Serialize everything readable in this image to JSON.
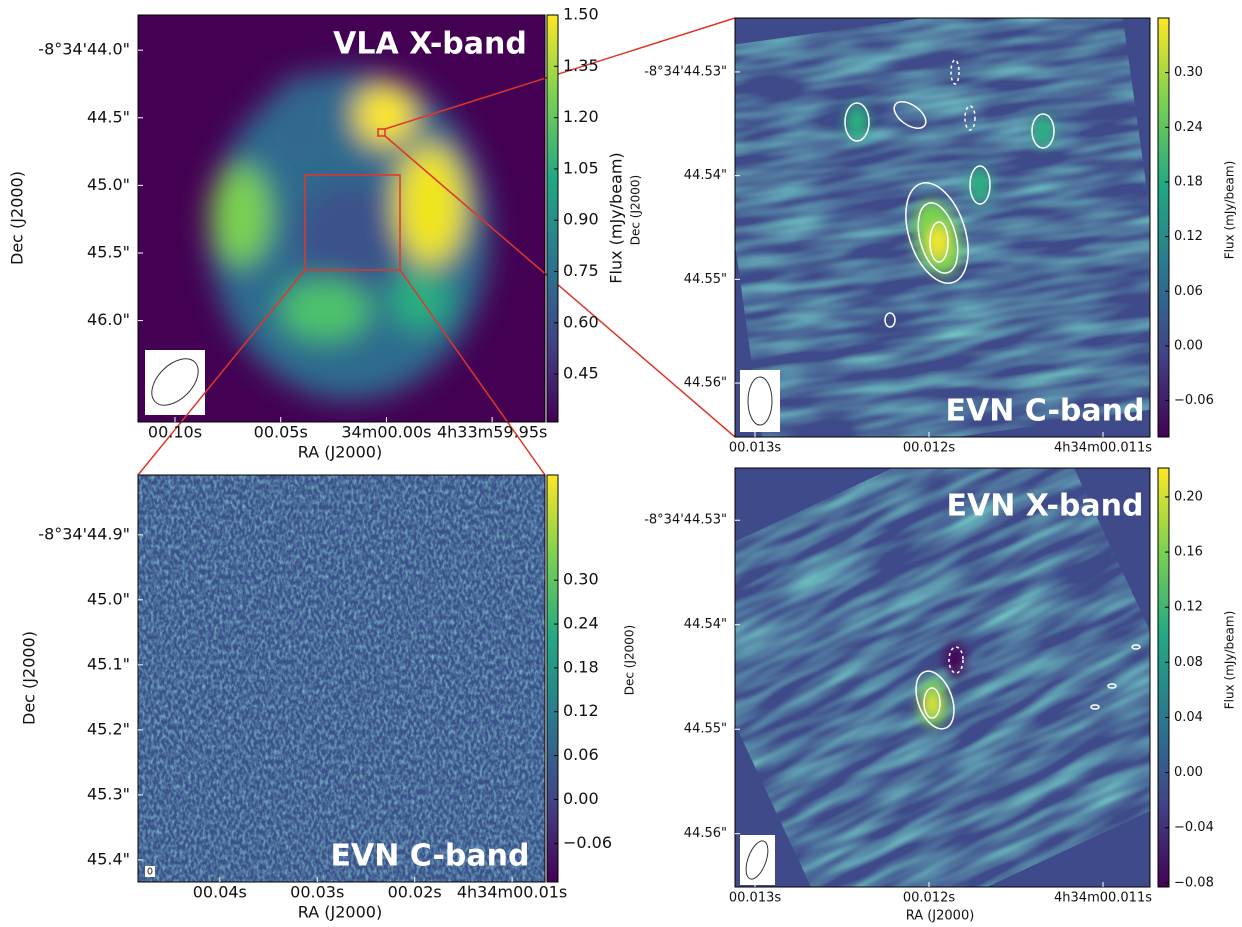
{
  "chart_data": [
    {
      "type": "image",
      "title": "VLA X-band",
      "xlabel": "RA (J2000)",
      "ylabel": "Dec (J2000)",
      "cbar_label": "Flux (mJy/beam)",
      "xlim": [
        0.1175,
        -0.075
      ],
      "xticks": [
        {
          "value": 0.1,
          "label": "00.10s"
        },
        {
          "value": 0.05,
          "label": "00.05s"
        },
        {
          "value": 0.0,
          "label": "34m00.00s"
        },
        {
          "value": -0.05,
          "label": "4h33m59.95s"
        }
      ],
      "ylim": [
        46.75,
        43.74
      ],
      "yticks": [
        {
          "value": 44.0,
          "label": "-8°34'44.0\""
        },
        {
          "value": 44.5,
          "label": "44.5\""
        },
        {
          "value": 45.0,
          "label": "45.0\""
        },
        {
          "value": 45.5,
          "label": "45.5\""
        },
        {
          "value": 46.0,
          "label": "46.0\""
        }
      ],
      "clim": [
        0.31,
        1.5
      ],
      "cticks": [
        0.45,
        {
          "value": 0.6,
          "label": "0.60"
        },
        0.75,
        {
          "value": 0.9,
          "label": "0.90"
        },
        1.05,
        {
          "value": 1.2,
          "label": "1.20"
        },
        1.35,
        {
          "value": 1.5,
          "label": "1.50"
        }
      ]
    },
    {
      "type": "image",
      "title": "EVN C-band",
      "ylabel": "Dec (J2000)",
      "cbar_label": "Flux (mJy/beam)",
      "xlim": [
        0.013115,
        0.01073
      ],
      "xticks": [
        {
          "value": 0.013,
          "label": "00.013s"
        },
        {
          "value": 0.012,
          "label": "00.012s"
        },
        {
          "value": 0.011,
          "label": "4h34m00.011s"
        }
      ],
      "ylim": [
        44.5652,
        44.5248
      ],
      "yticks": [
        {
          "value": 44.53,
          "label": "-8°34'44.53\""
        },
        {
          "value": 44.54,
          "label": "44.54\""
        },
        {
          "value": 44.55,
          "label": "44.55\""
        },
        {
          "value": 44.56,
          "label": "44.56\""
        }
      ],
      "clim": [
        -0.1,
        0.36
      ],
      "cticks": [
        {
          "value": -0.06,
          "label": "−0.06"
        },
        {
          "value": 0.0,
          "label": "0.00"
        },
        0.06,
        0.12,
        0.18,
        0.24,
        {
          "value": 0.3,
          "label": "0.30"
        }
      ]
    },
    {
      "type": "image",
      "title": "EVN C-band",
      "xlabel": "RA (J2000)",
      "ylabel": "Dec (J2000)",
      "xlim": [
        0.0484,
        0.00662
      ],
      "xticks": [
        {
          "value": 0.04,
          "label": "00.04s"
        },
        {
          "value": 0.03,
          "label": "00.03s"
        },
        {
          "value": 0.02,
          "label": "00.02s"
        },
        {
          "value": 0.01,
          "label": "4h34m00.01s"
        }
      ],
      "ylim": [
        45.434,
        44.808
      ],
      "yticks": [
        {
          "value": 44.9,
          "label": "-8°34'44.9\""
        },
        {
          "value": 45.0,
          "label": "45.0\""
        },
        {
          "value": 45.1,
          "label": "45.1\""
        },
        {
          "value": 45.2,
          "label": "45.2\""
        },
        {
          "value": 45.3,
          "label": "45.3\""
        },
        {
          "value": 45.4,
          "label": "45.4\""
        }
      ],
      "clim": [
        -0.113,
        0.444
      ],
      "cticks": [
        {
          "value": -0.06,
          "label": "−0.06"
        },
        {
          "value": 0.0,
          "label": "0.00"
        },
        0.06,
        0.12,
        0.18,
        0.24,
        {
          "value": 0.3,
          "label": "0.30"
        }
      ]
    },
    {
      "type": "image",
      "title": "EVN X-band",
      "xlabel": "RA (J2000)",
      "ylabel": "Dec (J2000)",
      "cbar_label": "Flux (mJy/beam)",
      "xlim": [
        0.013115,
        0.01073
      ],
      "xticks": [
        {
          "value": 0.013,
          "label": "00.013s"
        },
        {
          "value": 0.012,
          "label": "00.012s"
        },
        {
          "value": 0.011,
          "label": "4h34m00.011s"
        }
      ],
      "ylim": [
        44.5651,
        44.525
      ],
      "yticks": [
        {
          "value": 44.53,
          "label": "-8°34'44.53\""
        },
        {
          "value": 44.54,
          "label": "44.54\""
        },
        {
          "value": 44.55,
          "label": "44.55\""
        },
        {
          "value": 44.56,
          "label": "44.56\""
        }
      ],
      "clim": [
        -0.083,
        0.221
      ],
      "cticks": [
        {
          "value": -0.08,
          "label": "−0.08"
        },
        {
          "value": -0.04,
          "label": "−0.04"
        },
        {
          "value": 0.0,
          "label": "0.00"
        },
        0.04,
        0.08,
        0.12,
        0.16,
        {
          "value": 0.2,
          "label": "0.20"
        }
      ]
    }
  ]
}
